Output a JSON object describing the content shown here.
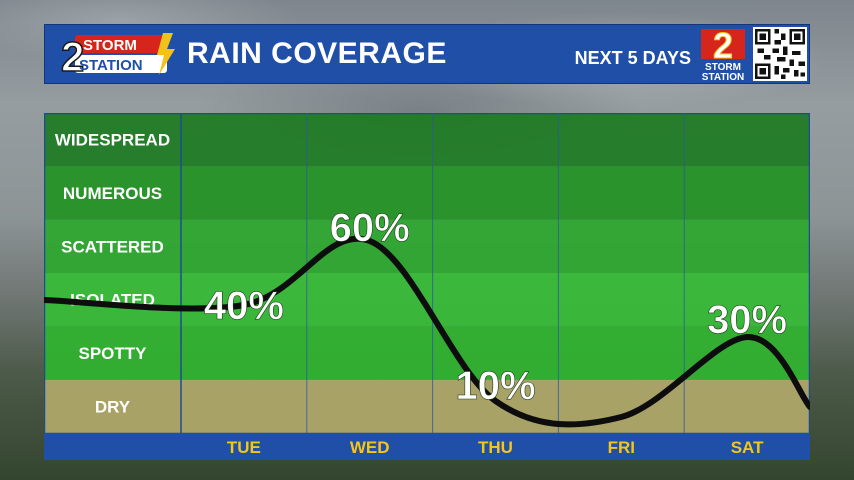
{
  "header": {
    "logo_line1": "STORM",
    "logo_line2": "STATION",
    "logo_number": "2",
    "title": "RAIN COVERAGE",
    "subtitle": "NEXT 5 DAYS",
    "brand_line1": "STORM",
    "brand_line2": "STATION"
  },
  "colors": {
    "header_blue": "#1f4fa6",
    "logo_red": "#d6261b",
    "logo_yellow": "#f3c21a",
    "day_label_yellow": "#f5c518",
    "curve": "#0d0d0d"
  },
  "chart_data": {
    "type": "line",
    "categories": [
      "TUE",
      "WED",
      "THU",
      "FRI",
      "SAT"
    ],
    "y_categories": [
      "DRY",
      "SPOTTY",
      "ISOLATED",
      "SCATTERED",
      "NUMEROUS",
      "WIDESPREAD"
    ],
    "series": [
      {
        "values": [
          40,
          60,
          10,
          5,
          30
        ]
      }
    ],
    "data_labels": [
      "40%",
      "60%",
      "10%",
      "",
      "30%"
    ],
    "ylim": [
      0,
      100
    ],
    "grid": true
  }
}
